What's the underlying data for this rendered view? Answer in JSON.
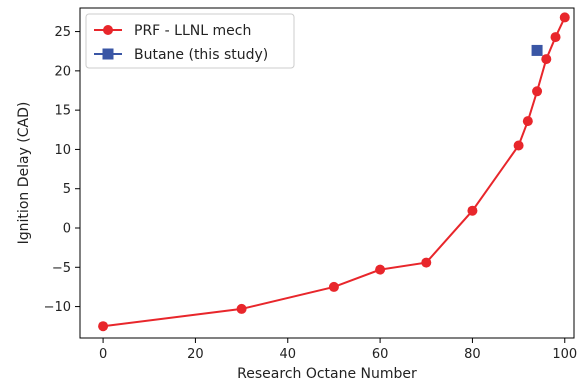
{
  "chart_data": {
    "type": "line",
    "xlabel": "Research Octane Number",
    "ylabel": "Ignition Delay (CAD)",
    "xlim": [
      -5,
      102
    ],
    "ylim": [
      -14,
      28
    ],
    "xticks": [
      0,
      20,
      40,
      60,
      80,
      100
    ],
    "yticks": [
      -10,
      -5,
      0,
      5,
      10,
      15,
      20,
      25
    ],
    "legend_position": "top-left",
    "series": [
      {
        "name": "PRF - LLNL mech",
        "color": "#e8262b",
        "marker": "circle",
        "line": true,
        "x": [
          0,
          30,
          50,
          60,
          70,
          80,
          90,
          92,
          94,
          96,
          98,
          100
        ],
        "y": [
          -12.5,
          -10.3,
          -7.5,
          -5.3,
          -4.4,
          2.2,
          10.5,
          13.6,
          17.4,
          21.5,
          24.3,
          26.8
        ]
      },
      {
        "name": "Butane (this study)",
        "color": "#3a56a5",
        "marker": "square",
        "line": false,
        "x": [
          94
        ],
        "y": [
          22.6
        ]
      }
    ]
  }
}
